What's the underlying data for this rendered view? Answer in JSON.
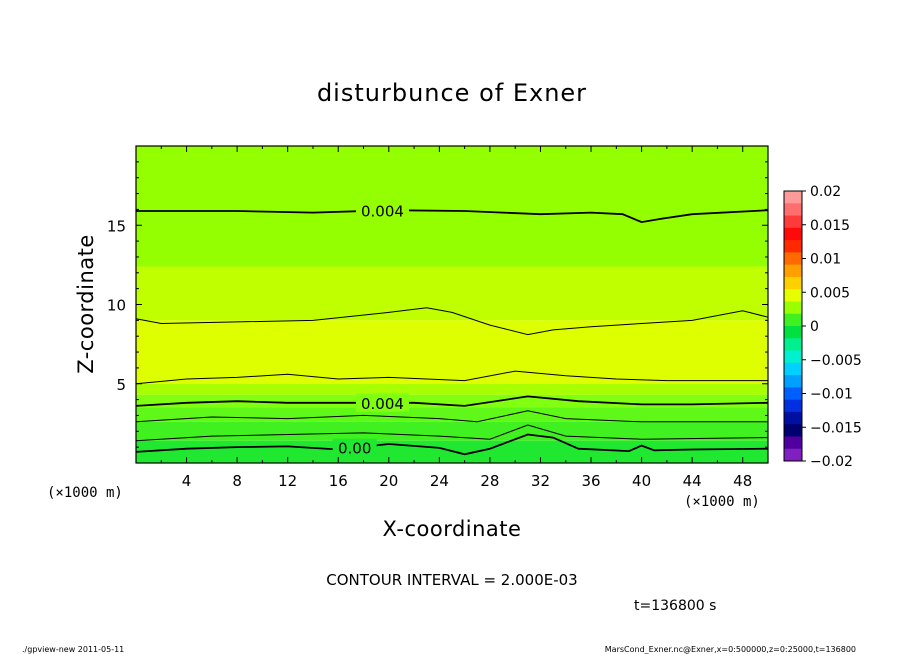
{
  "chart_data": {
    "type": "contour",
    "title": "disturbunce of Exner",
    "xlabel": "X-coordinate",
    "ylabel": "Z-coordinate",
    "x_unit_left": "(×1000 m)",
    "x_unit_right": "(×1000 m)",
    "xlim": [
      0,
      50
    ],
    "ylim": [
      0,
      20
    ],
    "xticks": [
      4,
      8,
      12,
      16,
      20,
      24,
      28,
      32,
      36,
      40,
      44,
      48
    ],
    "yticks": [
      5,
      10,
      15
    ],
    "colorbar": {
      "levels": [
        -0.02,
        -0.015,
        -0.01,
        -0.005,
        0,
        0.005,
        0.01,
        0.015,
        0.02
      ],
      "labels": [
        "0.02",
        "0.015",
        "0.01",
        "0.005",
        "0",
        "−0.005",
        "−0.01",
        "−0.015",
        "−0.02"
      ],
      "colors_top_to_bottom": [
        "#ff9a9a",
        "#ff6e6e",
        "#ff3a3a",
        "#ff0a0a",
        "#ff2a00",
        "#ff6a00",
        "#ffa000",
        "#ffd000",
        "#e6ff00",
        "#9aff00",
        "#40f020",
        "#00e040",
        "#00f090",
        "#00f0d0",
        "#00d0ff",
        "#00a0ff",
        "#0060ff",
        "#0030e0",
        "#0010a0",
        "#000070",
        "#5000a0",
        "#8020c0"
      ],
      "position": "right"
    },
    "bands": [
      {
        "z_top": 20,
        "z_bottom": 12.4,
        "color": "#94ff00"
      },
      {
        "z_top": 12.4,
        "z_bottom": 9,
        "color": "#c0ff00"
      },
      {
        "z_top": 9,
        "z_bottom": 5,
        "color": "#deff00"
      },
      {
        "z_top": 5,
        "z_bottom": 4.3,
        "color": "#a8ff00"
      },
      {
        "z_top": 4.3,
        "z_bottom": 3.5,
        "color": "#80ff10"
      },
      {
        "z_top": 3.5,
        "z_bottom": 2.6,
        "color": "#60f818"
      },
      {
        "z_top": 2.6,
        "z_bottom": 1.4,
        "color": "#40f020"
      },
      {
        "z_top": 1.4,
        "z_bottom": 0,
        "color": "#20e830"
      }
    ],
    "contour_lines": [
      {
        "label": "0.004",
        "label_x": 19.5,
        "bold": true,
        "points": [
          [
            0,
            15.9
          ],
          [
            8,
            15.9
          ],
          [
            14,
            15.8
          ],
          [
            20,
            15.95
          ],
          [
            26,
            15.9
          ],
          [
            32,
            15.7
          ],
          [
            36,
            15.8
          ],
          [
            38.5,
            15.7
          ],
          [
            40,
            15.2
          ],
          [
            41.5,
            15.4
          ],
          [
            44,
            15.7
          ],
          [
            50,
            15.95
          ]
        ]
      },
      {
        "label": "",
        "label_x": null,
        "bold": false,
        "points": [
          [
            0,
            9.1
          ],
          [
            2,
            8.8
          ],
          [
            8,
            8.9
          ],
          [
            14,
            9.0
          ],
          [
            20,
            9.5
          ],
          [
            23,
            9.8
          ],
          [
            25,
            9.5
          ],
          [
            28,
            8.7
          ],
          [
            31,
            8.1
          ],
          [
            33,
            8.4
          ],
          [
            36,
            8.6
          ],
          [
            40,
            8.8
          ],
          [
            44,
            9.0
          ],
          [
            48,
            9.6
          ],
          [
            50,
            9.2
          ]
        ]
      },
      {
        "label": "",
        "label_x": null,
        "bold": false,
        "points": [
          [
            0,
            5.0
          ],
          [
            4,
            5.3
          ],
          [
            8,
            5.4
          ],
          [
            12,
            5.6
          ],
          [
            16,
            5.3
          ],
          [
            20,
            5.4
          ],
          [
            26,
            5.2
          ],
          [
            30,
            5.8
          ],
          [
            34,
            5.5
          ],
          [
            38,
            5.3
          ],
          [
            42,
            5.2
          ],
          [
            46,
            5.2
          ],
          [
            50,
            5.2
          ]
        ]
      },
      {
        "label": "0.004",
        "label_x": 19.5,
        "bold": true,
        "points": [
          [
            0,
            3.6
          ],
          [
            4,
            3.8
          ],
          [
            8,
            3.9
          ],
          [
            12,
            3.8
          ],
          [
            16,
            3.8
          ],
          [
            22,
            3.8
          ],
          [
            26,
            3.6
          ],
          [
            31,
            4.2
          ],
          [
            35,
            3.9
          ],
          [
            40,
            3.7
          ],
          [
            44,
            3.7
          ],
          [
            50,
            3.8
          ]
        ]
      },
      {
        "label": "",
        "label_x": null,
        "bold": false,
        "points": [
          [
            0,
            2.6
          ],
          [
            6,
            2.9
          ],
          [
            12,
            2.8
          ],
          [
            18,
            3.0
          ],
          [
            24,
            2.8
          ],
          [
            27,
            2.6
          ],
          [
            31,
            3.3
          ],
          [
            34,
            2.8
          ],
          [
            40,
            2.6
          ],
          [
            50,
            2.6
          ]
        ]
      },
      {
        "label": "",
        "label_x": null,
        "bold": false,
        "points": [
          [
            0,
            1.4
          ],
          [
            6,
            1.7
          ],
          [
            12,
            1.8
          ],
          [
            18,
            1.9
          ],
          [
            24,
            1.7
          ],
          [
            28,
            1.5
          ],
          [
            31,
            2.4
          ],
          [
            34,
            1.7
          ],
          [
            40,
            1.5
          ],
          [
            50,
            1.6
          ]
        ]
      },
      {
        "label": "0.00",
        "label_x": 17.3,
        "bold": true,
        "points": [
          [
            0,
            0.7
          ],
          [
            4,
            0.9
          ],
          [
            8,
            1.0
          ],
          [
            12,
            1.05
          ],
          [
            16,
            0.85
          ],
          [
            20,
            1.2
          ],
          [
            24,
            0.95
          ],
          [
            26,
            0.55
          ],
          [
            28,
            0.9
          ],
          [
            31,
            1.8
          ],
          [
            33,
            1.6
          ],
          [
            35,
            0.9
          ],
          [
            39,
            0.75
          ],
          [
            40,
            1.1
          ],
          [
            41,
            0.8
          ],
          [
            44,
            0.85
          ],
          [
            50,
            0.9
          ]
        ]
      }
    ],
    "grid": false
  },
  "annotations": {
    "contour_interval": "CONTOUR INTERVAL = 2.000E-03",
    "time": "t=136800  s",
    "footer_left": "./gpview-new   2011-05-11",
    "footer_right": "MarsCond_Exner.nc@Exner,x=0:500000,z=0:25000,t=136800"
  }
}
